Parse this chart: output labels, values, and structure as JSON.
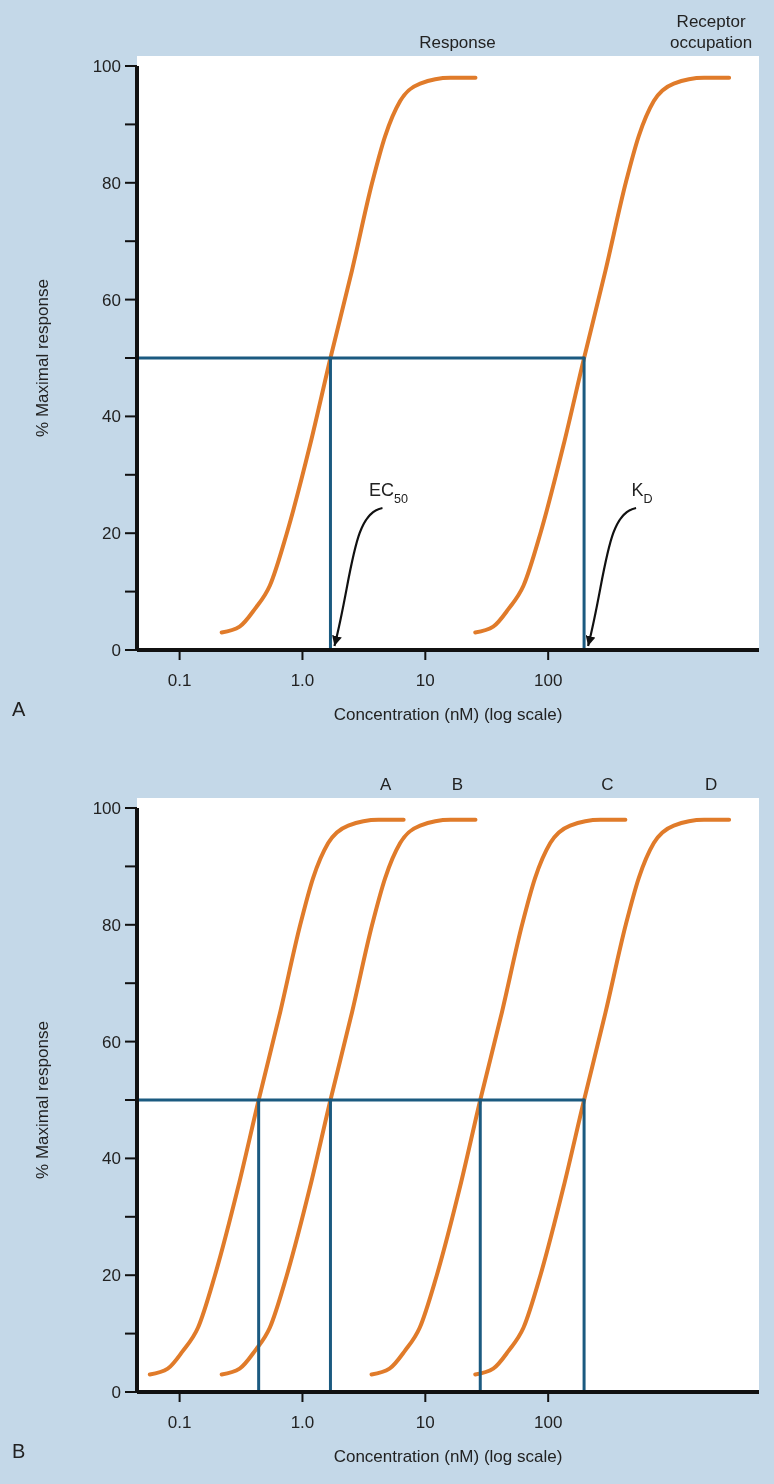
{
  "chart_data": [
    {
      "type": "line",
      "xlabel": "Concentration (nM) (log scale)",
      "ylabel": "% Maximal response",
      "log": "x",
      "xlim": [
        0.045,
        5200
      ],
      "ylim": [
        0,
        100
      ],
      "xticks": [
        0.1,
        {
          "value": 1,
          "label": "1.0"
        },
        10,
        100
      ],
      "yticks": [
        0,
        {
          "value": 10,
          "label": null
        },
        20,
        {
          "value": 30,
          "label": null
        },
        40,
        {
          "value": 50,
          "label": null
        },
        60,
        {
          "value": 70,
          "label": null
        },
        80,
        {
          "value": 90,
          "label": null
        },
        100
      ],
      "series": [
        {
          "name": "Response",
          "color": "#e07b2a",
          "x": [
            0.22,
            0.308,
            0.409,
            0.542,
            0.746,
            1.15,
            1.69,
            2.53,
            3.69,
            4.71,
            6.24,
            9.08,
            16.0,
            25.6
          ],
          "values": [
            3,
            4,
            7,
            11,
            20,
            35,
            50,
            65,
            80,
            88,
            94,
            97,
            98,
            98
          ]
        },
        {
          "name": "Receptor occupation",
          "color": "#e07b2a",
          "x": [
            25.5,
            35.7,
            47.4,
            62.9,
            86.5,
            133,
            196,
            293,
            428,
            546,
            724,
            1053,
            1856,
            2970
          ],
          "values": [
            3,
            4,
            7,
            11,
            20,
            35,
            50,
            65,
            80,
            88,
            94,
            97,
            98,
            98
          ]
        },
        {
          "color": "#1b5a80",
          "x": [
            0.045,
            196
          ],
          "values": [
            50,
            50
          ]
        },
        {
          "color": "#1b5a80",
          "x": [
            1.69,
            1.69
          ],
          "values": [
            0,
            50
          ]
        },
        {
          "color": "#1b5a80",
          "x": [
            196,
            196
          ],
          "values": [
            0,
            50
          ]
        }
      ],
      "annotations": [
        {
          "text": "EC$_{50}$",
          "x": 1.69,
          "y": 0
        },
        {
          "text": "K$_{D}$",
          "x": 196,
          "y": 0
        },
        "A"
      ]
    },
    {
      "type": "line",
      "xlabel": "Concentration (nM) (log scale)",
      "ylabel": "% Maximal response",
      "log": "x",
      "xlim": [
        0.045,
        5200
      ],
      "ylim": [
        0,
        100
      ],
      "xticks": [
        0.1,
        {
          "value": 1,
          "label": "1.0"
        },
        10,
        100
      ],
      "yticks": [
        0,
        {
          "value": 10,
          "label": null
        },
        20,
        {
          "value": 30,
          "label": null
        },
        40,
        {
          "value": 50,
          "label": null
        },
        60,
        {
          "value": 70,
          "label": null
        },
        80,
        {
          "value": 90,
          "label": null
        },
        100
      ],
      "series": [
        {
          "name": "A",
          "color": "#e07b2a",
          "x": [
            0.0572,
            0.0801,
            0.106,
            0.141,
            0.194,
            0.299,
            0.44,
            0.658,
            0.959,
            1.22,
            1.62,
            2.36,
            4.16,
            6.66
          ],
          "values": [
            3,
            4,
            7,
            11,
            20,
            35,
            50,
            65,
            80,
            88,
            94,
            97,
            98,
            98
          ]
        },
        {
          "name": "B",
          "color": "#e07b2a",
          "x": [
            0.22,
            0.308,
            0.409,
            0.542,
            0.746,
            1.15,
            1.69,
            2.53,
            3.69,
            4.71,
            6.24,
            9.08,
            16.0,
            25.6
          ],
          "values": [
            3,
            4,
            7,
            11,
            20,
            35,
            50,
            65,
            80,
            88,
            94,
            97,
            98,
            98
          ]
        },
        {
          "name": "C",
          "color": "#e07b2a",
          "x": [
            3.65,
            5.11,
            6.79,
            9.0,
            12.4,
            19.1,
            28,
            42.0,
            61.3,
            78.2,
            104,
            151,
            266,
            425
          ],
          "values": [
            3,
            4,
            7,
            11,
            20,
            35,
            50,
            65,
            80,
            88,
            94,
            97,
            98,
            98
          ]
        },
        {
          "name": "D",
          "color": "#e07b2a",
          "x": [
            25.5,
            35.7,
            47.4,
            62.9,
            86.5,
            133,
            196,
            293,
            428,
            546,
            724,
            1053,
            1856,
            2970
          ],
          "values": [
            3,
            4,
            7,
            11,
            20,
            35,
            50,
            65,
            80,
            88,
            94,
            97,
            98,
            98
          ]
        },
        {
          "color": "#1b5a80",
          "x": [
            0.045,
            196
          ],
          "values": [
            50,
            50
          ]
        },
        {
          "color": "#1b5a80",
          "x": [
            0.44,
            0.44
          ],
          "values": [
            0,
            50
          ]
        },
        {
          "color": "#1b5a80",
          "x": [
            1.69,
            1.69
          ],
          "values": [
            0,
            50
          ]
        },
        {
          "color": "#1b5a80",
          "x": [
            28,
            28
          ],
          "values": [
            0,
            50
          ]
        },
        {
          "color": "#1b5a80",
          "x": [
            196,
            196
          ],
          "values": [
            0,
            50
          ]
        }
      ],
      "annotations": [
        "B"
      ]
    }
  ]
}
